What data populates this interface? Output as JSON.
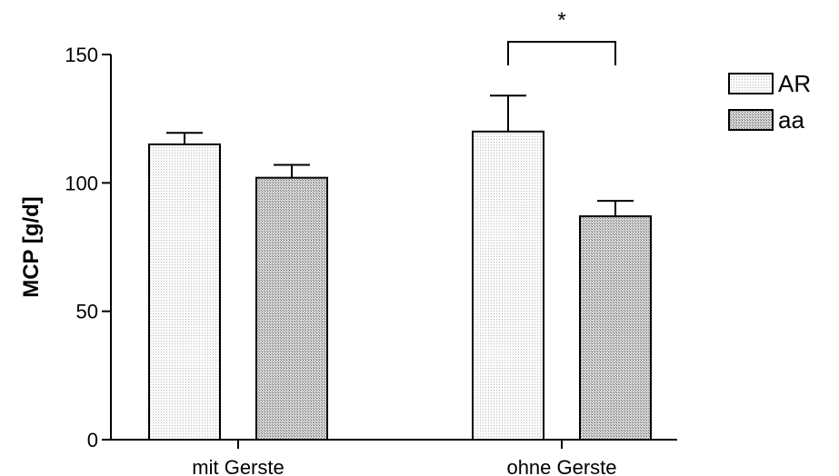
{
  "chart_data": {
    "type": "bar",
    "title": "",
    "xlabel": "",
    "ylabel": "MCP [g/d]",
    "ylim": [
      0,
      150
    ],
    "yticks": [
      0,
      50,
      100,
      150
    ],
    "categories": [
      "mit Gerste",
      "ohne Gerste"
    ],
    "series": [
      {
        "name": "AR",
        "values": [
          115,
          120
        ],
        "errors": [
          4.5,
          14
        ],
        "color": "#f4f4f4"
      },
      {
        "name": "aa",
        "values": [
          102,
          87
        ],
        "errors": [
          5,
          6
        ],
        "color": "#bdbdbd"
      }
    ],
    "legend": {
      "placement": "top-right"
    },
    "grid": false,
    "annotations": [
      {
        "text": "*",
        "between": "ohne Gerste",
        "series_pair": [
          "AR",
          "aa"
        ]
      }
    ]
  }
}
